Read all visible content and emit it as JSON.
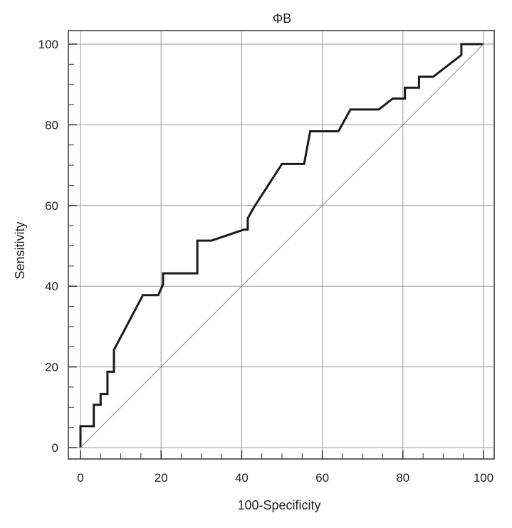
{
  "chart_data": {
    "type": "line",
    "title": "ΦB",
    "xlabel": "100-Specificity",
    "ylabel": "Sensitivity",
    "xlim": [
      0,
      100
    ],
    "ylim": [
      0,
      100
    ],
    "x_ticks": [
      "0",
      "20",
      "40",
      "60",
      "80",
      "100"
    ],
    "y_ticks": [
      "0",
      "20",
      "40",
      "60",
      "80",
      "100"
    ],
    "grid": true,
    "legend": "none",
    "series": [
      {
        "style": "roc-curve",
        "color": "#1a1a1a",
        "x": [
          0,
          0,
          3.3,
          3.3,
          5,
          5,
          6.7,
          6.7,
          8.3,
          8.3,
          15.5,
          19.3,
          20.5,
          20.5,
          29,
          29,
          32.5,
          40.5,
          41.5,
          41.5,
          43,
          50,
          55.5,
          57,
          64,
          67,
          74,
          77.5,
          80.5,
          80.5,
          84,
          84,
          87.5,
          94.5,
          94.5,
          100
        ],
        "y": [
          0,
          5.3,
          5.3,
          10.6,
          10.6,
          13.3,
          13.3,
          18.8,
          18.8,
          24.2,
          37.8,
          37.8,
          40.5,
          43.2,
          43.2,
          51.3,
          51.3,
          54,
          54,
          56.8,
          59.5,
          70.3,
          70.3,
          78.4,
          78.4,
          83.8,
          83.8,
          86.5,
          86.5,
          89.2,
          89.2,
          91.9,
          91.9,
          97.3,
          100,
          100
        ]
      },
      {
        "style": "reference-diagonal",
        "color": "#888888",
        "x": [
          0,
          100
        ],
        "y": [
          0,
          100
        ]
      }
    ]
  }
}
